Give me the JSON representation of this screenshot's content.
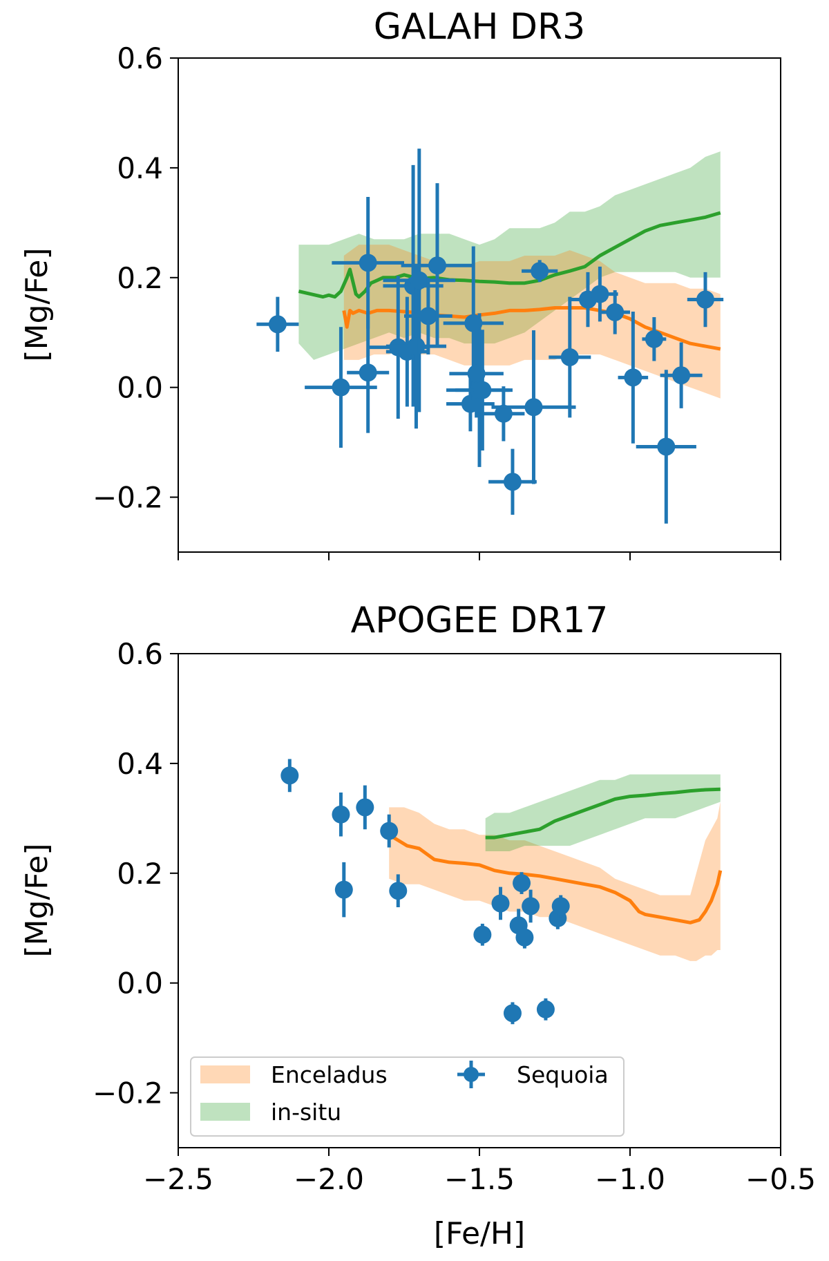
{
  "chart_data": [
    {
      "id": "galah",
      "type": "scatter",
      "title": "GALAH DR3",
      "ylabel": "[Mg/Fe]",
      "xlabel": "",
      "xlim": [
        -2.5,
        -0.5
      ],
      "ylim": [
        -0.3,
        0.6
      ],
      "xticks": [
        -2.5,
        -2.0,
        -1.5,
        -1.0,
        -0.5
      ],
      "xtick_labels": [
        "",
        "",
        "",
        "",
        ""
      ],
      "yticks": [
        -0.2,
        0.0,
        0.2,
        0.4,
        0.6
      ],
      "ytick_labels": [
        "−0.2",
        "0.0",
        "0.2",
        "0.4",
        "0.6"
      ],
      "bands": [
        {
          "name": "in-situ",
          "color": "#2ca02c",
          "opacity": 0.3,
          "x": [
            -2.1,
            -2.05,
            -2.0,
            -1.95,
            -1.9,
            -1.85,
            -1.8,
            -1.75,
            -1.7,
            -1.65,
            -1.6,
            -1.55,
            -1.5,
            -1.45,
            -1.4,
            -1.35,
            -1.3,
            -1.25,
            -1.2,
            -1.15,
            -1.1,
            -1.05,
            -1.0,
            -0.95,
            -0.9,
            -0.85,
            -0.8,
            -0.75,
            -0.7
          ],
          "lower": [
            0.08,
            0.05,
            0.06,
            0.07,
            0.08,
            0.09,
            0.1,
            0.09,
            0.1,
            0.09,
            0.09,
            0.08,
            0.08,
            0.08,
            0.09,
            0.1,
            0.12,
            0.14,
            0.16,
            0.18,
            0.2,
            0.21,
            0.21,
            0.21,
            0.21,
            0.21,
            0.2,
            0.2,
            0.2
          ],
          "upper": [
            0.26,
            0.26,
            0.26,
            0.27,
            0.28,
            0.27,
            0.27,
            0.27,
            0.28,
            0.28,
            0.28,
            0.27,
            0.26,
            0.27,
            0.29,
            0.29,
            0.29,
            0.3,
            0.32,
            0.32,
            0.33,
            0.35,
            0.36,
            0.37,
            0.38,
            0.39,
            0.4,
            0.42,
            0.43
          ]
        },
        {
          "name": "Enceladus",
          "color": "#ff7f0e",
          "opacity": 0.3,
          "x": [
            -1.95,
            -1.9,
            -1.85,
            -1.8,
            -1.75,
            -1.7,
            -1.65,
            -1.6,
            -1.55,
            -1.5,
            -1.45,
            -1.4,
            -1.35,
            -1.3,
            -1.25,
            -1.2,
            -1.15,
            -1.1,
            -1.05,
            -1.0,
            -0.95,
            -0.9,
            -0.85,
            -0.8,
            -0.75,
            -0.7
          ],
          "lower": [
            0.05,
            0.05,
            0.06,
            0.06,
            0.07,
            0.06,
            0.06,
            0.05,
            0.04,
            0.04,
            0.04,
            0.04,
            0.05,
            0.05,
            0.05,
            0.06,
            0.06,
            0.06,
            0.05,
            0.04,
            0.03,
            0.02,
            0.01,
            0.0,
            -0.01,
            -0.02
          ],
          "upper": [
            0.24,
            0.26,
            0.26,
            0.26,
            0.25,
            0.24,
            0.23,
            0.22,
            0.22,
            0.23,
            0.23,
            0.23,
            0.24,
            0.24,
            0.24,
            0.25,
            0.24,
            0.23,
            0.21,
            0.2,
            0.19,
            0.19,
            0.19,
            0.18,
            0.18,
            0.17
          ]
        }
      ],
      "series": [
        {
          "name": "in-situ",
          "color": "#2ca02c",
          "x": [
            -2.1,
            -2.06,
            -2.02,
            -2.0,
            -1.98,
            -1.96,
            -1.94,
            -1.93,
            -1.91,
            -1.9,
            -1.88,
            -1.86,
            -1.84,
            -1.82,
            -1.8,
            -1.78,
            -1.75,
            -1.7,
            -1.65,
            -1.6,
            -1.55,
            -1.5,
            -1.45,
            -1.4,
            -1.35,
            -1.3,
            -1.25,
            -1.2,
            -1.15,
            -1.1,
            -1.05,
            -1.0,
            -0.95,
            -0.9,
            -0.85,
            -0.8,
            -0.75,
            -0.7
          ],
          "y": [
            0.175,
            0.17,
            0.165,
            0.168,
            0.165,
            0.175,
            0.2,
            0.215,
            0.17,
            0.165,
            0.175,
            0.19,
            0.195,
            0.2,
            0.2,
            0.2,
            0.205,
            0.198,
            0.2,
            0.196,
            0.195,
            0.193,
            0.192,
            0.19,
            0.19,
            0.195,
            0.205,
            0.212,
            0.22,
            0.24,
            0.255,
            0.27,
            0.285,
            0.295,
            0.3,
            0.305,
            0.31,
            0.318
          ]
        },
        {
          "name": "Enceladus",
          "color": "#ff7f0e",
          "x": [
            -1.95,
            -1.94,
            -1.93,
            -1.92,
            -1.9,
            -1.87,
            -1.84,
            -1.8,
            -1.75,
            -1.7,
            -1.65,
            -1.6,
            -1.55,
            -1.5,
            -1.45,
            -1.4,
            -1.35,
            -1.3,
            -1.25,
            -1.2,
            -1.15,
            -1.1,
            -1.05,
            -1.0,
            -0.95,
            -0.9,
            -0.85,
            -0.8,
            -0.75,
            -0.7
          ],
          "y": [
            0.14,
            0.11,
            0.14,
            0.135,
            0.14,
            0.135,
            0.14,
            0.14,
            0.138,
            0.136,
            0.132,
            0.13,
            0.128,
            0.132,
            0.135,
            0.14,
            0.14,
            0.142,
            0.145,
            0.145,
            0.145,
            0.14,
            0.135,
            0.125,
            0.11,
            0.1,
            0.09,
            0.08,
            0.075,
            0.07
          ]
        }
      ],
      "points": {
        "name": "Sequoia",
        "color": "#1f77b4",
        "x": [
          -2.17,
          -1.96,
          -1.87,
          -1.87,
          -1.77,
          -1.74,
          -1.72,
          -1.71,
          -1.7,
          -1.67,
          -1.64,
          -1.53,
          -1.52,
          -1.51,
          -1.5,
          -1.49,
          -1.42,
          -1.39,
          -1.32,
          -1.3,
          -1.2,
          -1.14,
          -1.1,
          -1.05,
          -0.99,
          -0.92,
          -0.88,
          -0.83,
          -0.75
        ],
        "y": [
          0.115,
          0.0,
          0.227,
          0.027,
          0.073,
          0.065,
          0.185,
          0.075,
          0.195,
          0.13,
          0.222,
          -0.03,
          0.117,
          0.025,
          -0.005,
          -0.005,
          -0.048,
          -0.172,
          -0.036,
          0.212,
          0.055,
          0.16,
          0.17,
          0.137,
          0.018,
          0.088,
          -0.108,
          0.022,
          0.16
        ],
        "xerr": [
          0.07,
          0.12,
          0.12,
          0.07,
          0.1,
          0.07,
          0.1,
          0.1,
          0.12,
          0.08,
          0.12,
          0.08,
          0.1,
          0.09,
          0.11,
          0.09,
          0.07,
          0.08,
          0.14,
          0.06,
          0.07,
          0.06,
          0.06,
          0.05,
          0.05,
          0.04,
          0.1,
          0.07,
          0.06
        ],
        "yerr": [
          0.05,
          0.11,
          0.12,
          0.11,
          0.13,
          0.1,
          0.22,
          0.15,
          0.24,
          0.07,
          0.15,
          0.05,
          0.14,
          0.08,
          0.14,
          0.11,
          0.05,
          0.06,
          0.14,
          0.02,
          0.11,
          0.05,
          0.05,
          0.04,
          0.12,
          0.04,
          0.14,
          0.06,
          0.05
        ]
      }
    },
    {
      "id": "apogee",
      "type": "scatter",
      "title": "APOGEE DR17",
      "ylabel": "[Mg/Fe]",
      "xlabel": "[Fe/H]",
      "xlim": [
        -2.5,
        -0.5
      ],
      "ylim": [
        -0.3,
        0.6
      ],
      "xticks": [
        -2.5,
        -2.0,
        -1.5,
        -1.0,
        -0.5
      ],
      "xtick_labels": [
        "−2.5",
        "−2.0",
        "−1.5",
        "−1.0",
        "−0.5"
      ],
      "yticks": [
        -0.2,
        0.0,
        0.2,
        0.4,
        0.6
      ],
      "ytick_labels": [
        "−0.2",
        "0.0",
        "0.2",
        "0.4",
        "0.6"
      ],
      "bands": [
        {
          "name": "Enceladus",
          "color": "#ff7f0e",
          "opacity": 0.3,
          "x": [
            -1.8,
            -1.75,
            -1.7,
            -1.65,
            -1.6,
            -1.55,
            -1.5,
            -1.45,
            -1.4,
            -1.35,
            -1.3,
            -1.25,
            -1.2,
            -1.15,
            -1.1,
            -1.05,
            -1.0,
            -0.95,
            -0.9,
            -0.85,
            -0.8,
            -0.78,
            -0.75,
            -0.73,
            -0.71,
            -0.7
          ],
          "lower": [
            0.19,
            0.18,
            0.18,
            0.17,
            0.16,
            0.15,
            0.15,
            0.14,
            0.13,
            0.13,
            0.12,
            0.12,
            0.11,
            0.1,
            0.09,
            0.08,
            0.07,
            0.06,
            0.05,
            0.05,
            0.04,
            0.04,
            0.05,
            0.05,
            0.06,
            0.06
          ],
          "upper": [
            0.32,
            0.32,
            0.31,
            0.29,
            0.28,
            0.28,
            0.27,
            0.27,
            0.26,
            0.26,
            0.25,
            0.24,
            0.23,
            0.22,
            0.21,
            0.19,
            0.18,
            0.17,
            0.16,
            0.16,
            0.16,
            0.2,
            0.26,
            0.28,
            0.3,
            0.33
          ]
        },
        {
          "name": "in-situ",
          "color": "#2ca02c",
          "opacity": 0.3,
          "x": [
            -1.48,
            -1.45,
            -1.4,
            -1.35,
            -1.3,
            -1.25,
            -1.2,
            -1.15,
            -1.1,
            -1.05,
            -1.0,
            -0.95,
            -0.9,
            -0.85,
            -0.8,
            -0.75,
            -0.7
          ],
          "lower": [
            0.24,
            0.24,
            0.24,
            0.25,
            0.25,
            0.25,
            0.25,
            0.26,
            0.27,
            0.28,
            0.29,
            0.3,
            0.3,
            0.3,
            0.31,
            0.32,
            0.33
          ],
          "upper": [
            0.3,
            0.31,
            0.31,
            0.32,
            0.33,
            0.34,
            0.35,
            0.36,
            0.37,
            0.37,
            0.38,
            0.38,
            0.38,
            0.38,
            0.38,
            0.38,
            0.38
          ]
        }
      ],
      "series": [
        {
          "name": "Enceladus",
          "color": "#ff7f0e",
          "x": [
            -1.8,
            -1.77,
            -1.74,
            -1.7,
            -1.65,
            -1.6,
            -1.55,
            -1.5,
            -1.45,
            -1.4,
            -1.35,
            -1.3,
            -1.25,
            -1.2,
            -1.15,
            -1.1,
            -1.05,
            -1.0,
            -0.97,
            -0.95,
            -0.9,
            -0.85,
            -0.8,
            -0.77,
            -0.75,
            -0.73,
            -0.71,
            -0.7
          ],
          "y": [
            0.27,
            0.26,
            0.25,
            0.245,
            0.225,
            0.22,
            0.218,
            0.215,
            0.205,
            0.2,
            0.198,
            0.195,
            0.19,
            0.185,
            0.18,
            0.175,
            0.165,
            0.15,
            0.13,
            0.125,
            0.12,
            0.115,
            0.11,
            0.115,
            0.13,
            0.15,
            0.18,
            0.205
          ]
        },
        {
          "name": "in-situ",
          "color": "#2ca02c",
          "x": [
            -1.48,
            -1.45,
            -1.4,
            -1.35,
            -1.3,
            -1.25,
            -1.2,
            -1.15,
            -1.1,
            -1.05,
            -1.0,
            -0.95,
            -0.9,
            -0.85,
            -0.8,
            -0.75,
            -0.7
          ],
          "y": [
            0.265,
            0.265,
            0.27,
            0.275,
            0.28,
            0.295,
            0.305,
            0.315,
            0.325,
            0.335,
            0.34,
            0.342,
            0.345,
            0.347,
            0.35,
            0.352,
            0.353
          ]
        }
      ],
      "points": {
        "name": "Sequoia",
        "color": "#1f77b4",
        "x": [
          -2.13,
          -1.96,
          -1.95,
          -1.88,
          -1.8,
          -1.77,
          -1.49,
          -1.43,
          -1.39,
          -1.37,
          -1.36,
          -1.35,
          -1.33,
          -1.28,
          -1.24,
          -1.23
        ],
        "y": [
          0.378,
          0.307,
          0.17,
          0.32,
          0.277,
          0.168,
          0.088,
          0.145,
          -0.055,
          0.105,
          0.182,
          0.083,
          0.14,
          -0.048,
          0.118,
          0.14
        ],
        "xerr": [
          0,
          0,
          0,
          0,
          0,
          0,
          0,
          0,
          0,
          0,
          0,
          0,
          0,
          0,
          0,
          0
        ],
        "yerr": [
          0.03,
          0.04,
          0.05,
          0.04,
          0.03,
          0.03,
          0.02,
          0.03,
          0.02,
          0.03,
          0.02,
          0.02,
          0.03,
          0.02,
          0.02,
          0.02
        ]
      }
    }
  ],
  "legend": {
    "items": [
      {
        "label": "Enceladus",
        "kind": "band",
        "color": "#ff7f0e"
      },
      {
        "label": "in-situ",
        "kind": "band",
        "color": "#2ca02c"
      },
      {
        "label": "Sequoia",
        "kind": "errorbar",
        "color": "#1f77b4"
      }
    ]
  }
}
